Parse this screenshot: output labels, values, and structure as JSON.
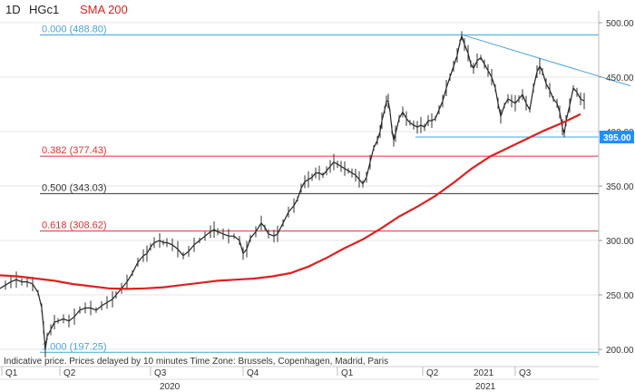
{
  "header": {
    "timeframe": "1D",
    "symbol": "HGc1",
    "indicator": "SMA 200",
    "indicator_color": "#e02020"
  },
  "disclaimer": "Indicative price. Prices delayed by 10 minutes    Time Zone: Brussels, Copenhagen, Madrid, Paris",
  "chart_data": {
    "type": "line",
    "y_axis": {
      "ticks": [
        "500.00",
        "450.00",
        "400.00",
        "350.00",
        "300.00",
        "250.00",
        "200.00"
      ],
      "range": [
        192,
        505
      ],
      "position": "right"
    },
    "x_axis": {
      "quarter_labels": [
        "Q1",
        "Q2",
        "Q3",
        "Q4",
        "Q1",
        "Q2",
        "2021",
        "Q3"
      ],
      "year_labels": [
        "2020",
        "2021"
      ]
    },
    "current_price": {
      "label": "395.00",
      "value": 395.0,
      "color": "#1e90ff"
    },
    "fibonacci_levels": [
      {
        "label": "0.000 (488.80)",
        "value": 488.8,
        "color": "#4aa3d8"
      },
      {
        "label": "0.382 (377.43)",
        "value": 377.43,
        "color": "#e03030"
      },
      {
        "label": "0.500 (343.03)",
        "value": 343.03,
        "color": "#333333"
      },
      {
        "label": "0.618 (308.62)",
        "value": 308.62,
        "color": "#e03030"
      },
      {
        "label": "1.000 (197.25)",
        "value": 197.25,
        "color": "#4aa3d8"
      }
    ],
    "price_series": {
      "color": "#222222",
      "points": [
        [
          0,
          256
        ],
        [
          6,
          259
        ],
        [
          12,
          262
        ],
        [
          18,
          264
        ],
        [
          24,
          262
        ],
        [
          30,
          262
        ],
        [
          36,
          260
        ],
        [
          42,
          252
        ],
        [
          46,
          238
        ],
        [
          48,
          220
        ],
        [
          50,
          200
        ],
        [
          52,
          212
        ],
        [
          56,
          218
        ],
        [
          60,
          225
        ],
        [
          64,
          226
        ],
        [
          70,
          228
        ],
        [
          76,
          226
        ],
        [
          82,
          230
        ],
        [
          88,
          236
        ],
        [
          94,
          238
        ],
        [
          100,
          238
        ],
        [
          106,
          236
        ],
        [
          112,
          240
        ],
        [
          118,
          243
        ],
        [
          124,
          246
        ],
        [
          128,
          250
        ],
        [
          134,
          256
        ],
        [
          140,
          262
        ],
        [
          146,
          270
        ],
        [
          152,
          280
        ],
        [
          158,
          286
        ],
        [
          162,
          288
        ],
        [
          166,
          294
        ],
        [
          170,
          298
        ],
        [
          176,
          300
        ],
        [
          180,
          298
        ],
        [
          184,
          298
        ],
        [
          190,
          296
        ],
        [
          196,
          292
        ],
        [
          202,
          286
        ],
        [
          208,
          290
        ],
        [
          214,
          296
        ],
        [
          220,
          300
        ],
        [
          226,
          304
        ],
        [
          232,
          308
        ],
        [
          236,
          310
        ],
        [
          240,
          308
        ],
        [
          246,
          306
        ],
        [
          252,
          304
        ],
        [
          258,
          304
        ],
        [
          264,
          300
        ],
        [
          268,
          288
        ],
        [
          272,
          292
        ],
        [
          276,
          302
        ],
        [
          282,
          308
        ],
        [
          288,
          316
        ],
        [
          292,
          312
        ],
        [
          296,
          306
        ],
        [
          302,
          304
        ],
        [
          306,
          306
        ],
        [
          312,
          316
        ],
        [
          318,
          326
        ],
        [
          324,
          332
        ],
        [
          328,
          338
        ],
        [
          332,
          348
        ],
        [
          336,
          354
        ],
        [
          340,
          356
        ],
        [
          344,
          358
        ],
        [
          348,
          362
        ],
        [
          352,
          362
        ],
        [
          356,
          360
        ],
        [
          360,
          364
        ],
        [
          364,
          368
        ],
        [
          368,
          372
        ],
        [
          372,
          370
        ],
        [
          376,
          368
        ],
        [
          380,
          366
        ],
        [
          384,
          364
        ],
        [
          388,
          362
        ],
        [
          392,
          360
        ],
        [
          396,
          356
        ],
        [
          400,
          352
        ],
        [
          404,
          358
        ],
        [
          408,
          372
        ],
        [
          412,
          385
        ],
        [
          416,
          392
        ],
        [
          419,
          400
        ],
        [
          421,
          410
        ],
        [
          424,
          420
        ],
        [
          426,
          428
        ],
        [
          428,
          428
        ],
        [
          430,
          418
        ],
        [
          432,
          402
        ],
        [
          434,
          392
        ],
        [
          436,
          398
        ],
        [
          440,
          412
        ],
        [
          444,
          418
        ],
        [
          448,
          412
        ],
        [
          452,
          408
        ],
        [
          456,
          406
        ],
        [
          460,
          404
        ],
        [
          464,
          406
        ],
        [
          468,
          404
        ],
        [
          472,
          410
        ],
        [
          476,
          410
        ],
        [
          480,
          412
        ],
        [
          484,
          420
        ],
        [
          488,
          428
        ],
        [
          492,
          440
        ],
        [
          496,
          450
        ],
        [
          500,
          460
        ],
        [
          504,
          470
        ],
        [
          507,
          482
        ],
        [
          509,
          488
        ],
        [
          512,
          480
        ],
        [
          516,
          472
        ],
        [
          519,
          462
        ],
        [
          522,
          458
        ],
        [
          526,
          465
        ],
        [
          530,
          468
        ],
        [
          534,
          462
        ],
        [
          538,
          456
        ],
        [
          542,
          450
        ],
        [
          546,
          440
        ],
        [
          549,
          426
        ],
        [
          552,
          414
        ],
        [
          556,
          424
        ],
        [
          560,
          430
        ],
        [
          564,
          428
        ],
        [
          568,
          426
        ],
        [
          572,
          430
        ],
        [
          576,
          434
        ],
        [
          580,
          426
        ],
        [
          584,
          420
        ],
        [
          588,
          440
        ],
        [
          592,
          455
        ],
        [
          595,
          460
        ],
        [
          598,
          455
        ],
        [
          602,
          444
        ],
        [
          606,
          438
        ],
        [
          610,
          430
        ],
        [
          614,
          426
        ],
        [
          617,
          418
        ],
        [
          620,
          404
        ],
        [
          622,
          398
        ],
        [
          624,
          410
        ],
        [
          628,
          424
        ],
        [
          632,
          440
        ],
        [
          636,
          436
        ],
        [
          640,
          430
        ],
        [
          644,
          428
        ]
      ]
    },
    "sma_series": {
      "color": "#e02020",
      "points": [
        [
          0,
          268
        ],
        [
          20,
          267
        ],
        [
          40,
          265
        ],
        [
          60,
          263
        ],
        [
          80,
          260
        ],
        [
          100,
          258
        ],
        [
          120,
          256
        ],
        [
          140,
          255.5
        ],
        [
          160,
          256
        ],
        [
          180,
          257
        ],
        [
          200,
          259
        ],
        [
          220,
          261
        ],
        [
          240,
          263
        ],
        [
          260,
          264
        ],
        [
          280,
          265
        ],
        [
          300,
          267
        ],
        [
          320,
          270
        ],
        [
          340,
          276
        ],
        [
          360,
          284
        ],
        [
          380,
          293
        ],
        [
          400,
          301
        ],
        [
          420,
          311
        ],
        [
          440,
          322
        ],
        [
          460,
          331
        ],
        [
          480,
          341
        ],
        [
          500,
          353
        ],
        [
          520,
          366
        ],
        [
          540,
          377
        ],
        [
          560,
          385
        ],
        [
          580,
          393
        ],
        [
          600,
          401
        ],
        [
          620,
          408
        ],
        [
          640,
          416
        ]
      ]
    },
    "trendline": {
      "color": "#4aa3d8",
      "from": [
        509,
        489
      ],
      "to": [
        695,
        442
      ]
    },
    "support_line": {
      "color": "#4aa3d8",
      "from": [
        458,
        395
      ],
      "to": [
        660,
        395
      ]
    }
  }
}
